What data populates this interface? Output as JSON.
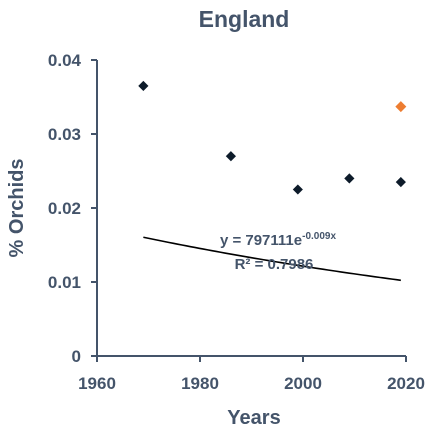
{
  "chart_data": {
    "type": "scatter",
    "title": "England",
    "xlabel": "Years",
    "ylabel": "% Orchids",
    "xlim": [
      1960,
      2020
    ],
    "ylim": [
      0,
      0.04
    ],
    "x_ticks": [
      "1960",
      "1980",
      "2000",
      "2020"
    ],
    "y_ticks": [
      "0",
      "0.01",
      "0.02",
      "0.03",
      "0.04"
    ],
    "grid": false,
    "legend": "none",
    "series": [
      {
        "color": "#0d1b2a",
        "marker": "diamond",
        "x": [
          1969,
          1986,
          1999,
          2009,
          2019
        ],
        "y": [
          0.0365,
          0.027,
          0.0225,
          0.024,
          0.0235
        ]
      },
      {
        "color": "#ed7d31",
        "marker": "diamond",
        "x": [
          2019
        ],
        "y": [
          0.0337
        ]
      }
    ],
    "trendline": {
      "type": "exponential",
      "a": 797111,
      "b": -0.009,
      "x_range": [
        1969,
        2019
      ],
      "color": "#000000"
    },
    "annotations": {
      "equation_main": "y = 797111e",
      "equation_exp": "-0.009x",
      "r_squared": "R² = 0.7986"
    }
  }
}
